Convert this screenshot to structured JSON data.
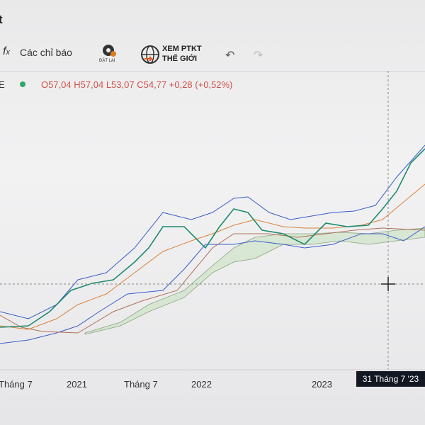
{
  "header": {
    "title": "t"
  },
  "toolbar": {
    "indicators": "Các chỉ báo",
    "reset": "ĐẶT LẠI",
    "world_line1": "XEM PTKT",
    "world_line2": "THẾ GIỚI"
  },
  "legend": {
    "symbol": "E",
    "ohlc": [
      "O57,04",
      "H57,04",
      "L53,07",
      "C54,77",
      "+0,28 (+0,52%)"
    ]
  },
  "time_axis": {
    "labels": [
      "Tháng 7",
      "2021",
      "Tháng 7",
      "2022",
      "2023"
    ],
    "crosshair_label": "31 Tháng 7 '23"
  }
}
